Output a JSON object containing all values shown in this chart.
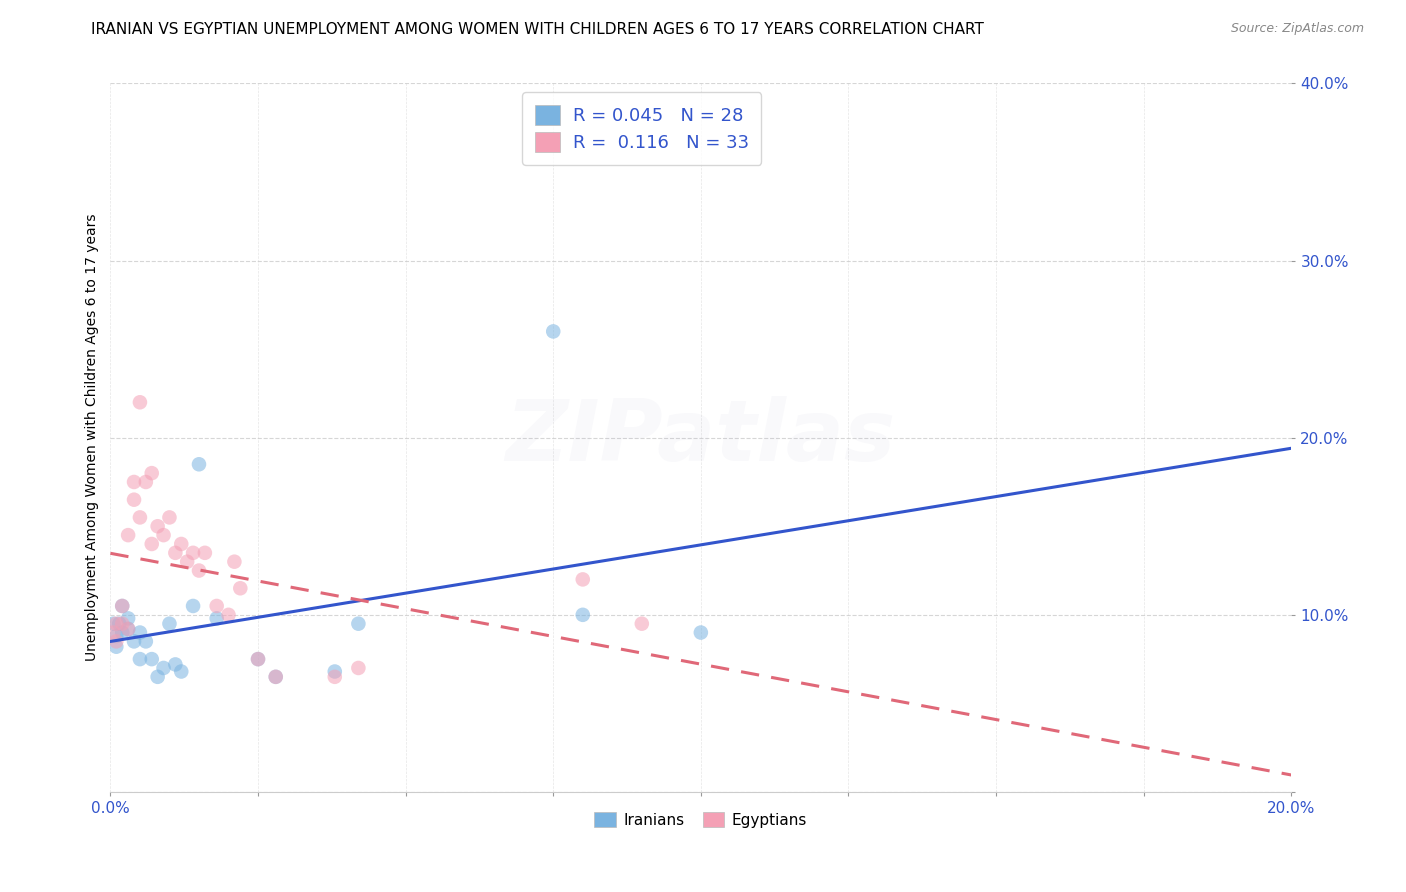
{
  "title": "IRANIAN VS EGYPTIAN UNEMPLOYMENT AMONG WOMEN WITH CHILDREN AGES 6 TO 17 YEARS CORRELATION CHART",
  "source": "Source: ZipAtlas.com",
  "ylabel_label": "Unemployment Among Women with Children Ages 6 to 17 years",
  "xlim": [
    0.0,
    0.2
  ],
  "ylim": [
    0.0,
    0.4
  ],
  "xticks": [
    0.0,
    0.025,
    0.05,
    0.075,
    0.1,
    0.125,
    0.15,
    0.175,
    0.2
  ],
  "xtick_labels_show": [
    0.0,
    0.2
  ],
  "yticks": [
    0.0,
    0.1,
    0.2,
    0.3,
    0.4
  ],
  "background_color": "#ffffff",
  "grid_color": "#cccccc",
  "iranians_color": "#7ab3e0",
  "egyptians_color": "#f4a0b5",
  "iranians_line_color": "#3355cc",
  "egyptians_line_color": "#e06878",
  "R_iranians": 0.045,
  "N_iranians": 28,
  "R_egyptians": 0.116,
  "N_egyptians": 33,
  "iranians_x": [
    0.0005,
    0.001,
    0.001,
    0.0015,
    0.002,
    0.002,
    0.003,
    0.003,
    0.004,
    0.005,
    0.005,
    0.006,
    0.007,
    0.008,
    0.009,
    0.01,
    0.011,
    0.012,
    0.014,
    0.015,
    0.018,
    0.025,
    0.028,
    0.038,
    0.042,
    0.075,
    0.08,
    0.1
  ],
  "iranians_y": [
    0.095,
    0.082,
    0.088,
    0.095,
    0.09,
    0.105,
    0.092,
    0.098,
    0.085,
    0.09,
    0.075,
    0.085,
    0.075,
    0.065,
    0.07,
    0.095,
    0.072,
    0.068,
    0.105,
    0.185,
    0.098,
    0.075,
    0.065,
    0.068,
    0.095,
    0.26,
    0.1,
    0.09
  ],
  "egyptians_x": [
    0.0005,
    0.001,
    0.001,
    0.002,
    0.002,
    0.003,
    0.003,
    0.004,
    0.004,
    0.005,
    0.005,
    0.006,
    0.007,
    0.007,
    0.008,
    0.009,
    0.01,
    0.011,
    0.012,
    0.013,
    0.014,
    0.015,
    0.016,
    0.018,
    0.02,
    0.021,
    0.022,
    0.025,
    0.028,
    0.038,
    0.042,
    0.08,
    0.09
  ],
  "egyptians_y": [
    0.09,
    0.095,
    0.085,
    0.095,
    0.105,
    0.092,
    0.145,
    0.165,
    0.175,
    0.155,
    0.22,
    0.175,
    0.14,
    0.18,
    0.15,
    0.145,
    0.155,
    0.135,
    0.14,
    0.13,
    0.135,
    0.125,
    0.135,
    0.105,
    0.1,
    0.13,
    0.115,
    0.075,
    0.065,
    0.065,
    0.07,
    0.12,
    0.095
  ],
  "title_fontsize": 11,
  "axis_label_fontsize": 10,
  "tick_fontsize": 11,
  "legend_fontsize": 13,
  "marker_size": 110,
  "marker_alpha": 0.55,
  "line_width": 2.2,
  "watermark_text": "ZIPatlas",
  "watermark_alpha": 0.07
}
